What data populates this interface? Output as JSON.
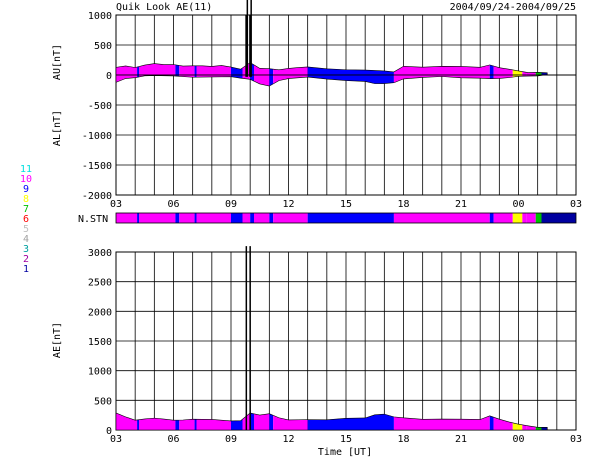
{
  "header": {
    "title": "Quik Look AE(11)",
    "date_range": "2004/09/24-2004/09/25"
  },
  "chart_data": [
    {
      "type": "area",
      "panel": "AU/AL",
      "y_upper_label": "AU[nT]",
      "y_lower_label": "AL[nT]",
      "ylim": [
        -2000,
        1000
      ],
      "yticks": [
        -2000,
        -1500,
        -1000,
        -500,
        0,
        500,
        1000
      ],
      "x_ticks": [
        "03",
        "06",
        "09",
        "12",
        "15",
        "18",
        "21",
        "00",
        "03"
      ],
      "x_range_hours": [
        3,
        27
      ],
      "grid": true,
      "au_profile": [
        [
          3.0,
          120
        ],
        [
          3.5,
          150
        ],
        [
          4.0,
          130
        ],
        [
          4.5,
          160
        ],
        [
          5.0,
          190
        ],
        [
          5.5,
          180
        ],
        [
          6.0,
          170
        ],
        [
          6.5,
          150
        ],
        [
          7.0,
          160
        ],
        [
          7.5,
          150
        ],
        [
          8.0,
          145
        ],
        [
          8.5,
          150
        ],
        [
          9.0,
          130
        ],
        [
          9.5,
          100
        ],
        [
          10.0,
          200
        ],
        [
          10.5,
          110
        ],
        [
          11.0,
          110
        ],
        [
          11.5,
          80
        ],
        [
          12.0,
          110
        ],
        [
          12.5,
          130
        ],
        [
          13.0,
          130
        ],
        [
          14.0,
          110
        ],
        [
          15.0,
          90
        ],
        [
          16.0,
          80
        ],
        [
          17.0,
          60
        ],
        [
          17.5,
          50
        ],
        [
          18.0,
          150
        ],
        [
          19.0,
          130
        ],
        [
          20.0,
          140
        ],
        [
          21.0,
          150
        ],
        [
          22.0,
          130
        ],
        [
          22.5,
          160
        ],
        [
          23.0,
          120
        ],
        [
          23.5,
          100
        ],
        [
          24.0,
          60
        ],
        [
          24.5,
          40
        ],
        [
          25.0,
          50
        ],
        [
          25.5,
          30
        ]
      ],
      "al_profile": [
        [
          3.0,
          -130
        ],
        [
          3.5,
          -60
        ],
        [
          4.0,
          -40
        ],
        [
          4.5,
          -20
        ],
        [
          5.0,
          -10
        ],
        [
          6.0,
          -20
        ],
        [
          7.0,
          -30
        ],
        [
          8.0,
          -30
        ],
        [
          9.0,
          -30
        ],
        [
          9.5,
          -50
        ],
        [
          10.0,
          -80
        ],
        [
          10.5,
          -150
        ],
        [
          11.0,
          -180
        ],
        [
          11.5,
          -100
        ],
        [
          12.0,
          -60
        ],
        [
          13.0,
          -40
        ],
        [
          14.0,
          -60
        ],
        [
          15.0,
          -90
        ],
        [
          16.0,
          -110
        ],
        [
          16.5,
          -140
        ],
        [
          17.0,
          -150
        ],
        [
          17.5,
          -130
        ],
        [
          18.0,
          -60
        ],
        [
          19.0,
          -40
        ],
        [
          20.0,
          -30
        ],
        [
          21.0,
          -40
        ],
        [
          22.0,
          -50
        ],
        [
          22.5,
          -70
        ],
        [
          23.0,
          -60
        ],
        [
          23.5,
          -40
        ],
        [
          24.0,
          -30
        ],
        [
          24.5,
          -20
        ],
        [
          25.0,
          -10
        ],
        [
          25.5,
          0
        ]
      ],
      "spikes": [
        [
          9.8,
          1000
        ],
        [
          10.0,
          1000
        ]
      ]
    },
    {
      "type": "heatmap",
      "panel": "N.STN",
      "label": "N.STN",
      "legend": [
        {
          "value": "11",
          "color": "#00e0e0"
        },
        {
          "value": "10",
          "color": "#ff00ff"
        },
        {
          "value": "9",
          "color": "#0000ff"
        },
        {
          "value": "8",
          "color": "#ffff00"
        },
        {
          "value": "7",
          "color": "#00c000"
        },
        {
          "value": "6",
          "color": "#ff0000"
        },
        {
          "value": "5",
          "color": "#c0c0c0"
        },
        {
          "value": "4",
          "color": "#a0a0a0"
        },
        {
          "value": "3",
          "color": "#00a0a0"
        },
        {
          "value": "2",
          "color": "#a000a0"
        },
        {
          "value": "1",
          "color": "#0000a0"
        }
      ],
      "segments": [
        [
          3.0,
          4.1,
          "10"
        ],
        [
          4.1,
          4.2,
          "9"
        ],
        [
          4.2,
          6.1,
          "10"
        ],
        [
          6.1,
          6.3,
          "9"
        ],
        [
          6.3,
          7.1,
          "10"
        ],
        [
          7.1,
          7.2,
          "9"
        ],
        [
          7.2,
          9.0,
          "10"
        ],
        [
          9.0,
          9.6,
          "9"
        ],
        [
          9.6,
          10.0,
          "10"
        ],
        [
          10.0,
          10.2,
          "9"
        ],
        [
          10.2,
          11.0,
          "10"
        ],
        [
          11.0,
          11.2,
          "9"
        ],
        [
          11.2,
          13.0,
          "10"
        ],
        [
          13.0,
          17.5,
          "9"
        ],
        [
          17.5,
          22.5,
          "10"
        ],
        [
          22.5,
          22.7,
          "9"
        ],
        [
          22.7,
          23.7,
          "10"
        ],
        [
          23.7,
          24.2,
          "8"
        ],
        [
          24.2,
          24.4,
          "10"
        ],
        [
          24.4,
          24.9,
          "10"
        ],
        [
          24.9,
          25.2,
          "7"
        ],
        [
          25.2,
          27.0,
          "1"
        ]
      ]
    },
    {
      "type": "area",
      "panel": "AE",
      "ylabel": "AE[nT]",
      "xlabel": "Time [UT]",
      "ylim": [
        0,
        3000
      ],
      "yticks": [
        0,
        500,
        1000,
        1500,
        2000,
        2500,
        3000
      ],
      "x_ticks": [
        "03",
        "06",
        "09",
        "12",
        "15",
        "18",
        "21",
        "00",
        "03"
      ],
      "x_range_hours": [
        3,
        27
      ],
      "grid": true,
      "ae_profile": [
        [
          3.0,
          280
        ],
        [
          3.5,
          220
        ],
        [
          4.0,
          170
        ],
        [
          4.5,
          180
        ],
        [
          5.0,
          200
        ],
        [
          5.5,
          190
        ],
        [
          6.0,
          160
        ],
        [
          6.5,
          170
        ],
        [
          7.0,
          190
        ],
        [
          8.0,
          180
        ],
        [
          9.0,
          150
        ],
        [
          9.5,
          160
        ],
        [
          10.0,
          280
        ],
        [
          10.5,
          250
        ],
        [
          11.0,
          280
        ],
        [
          11.5,
          200
        ],
        [
          12.0,
          170
        ],
        [
          13.0,
          170
        ],
        [
          14.0,
          180
        ],
        [
          15.0,
          200
        ],
        [
          16.0,
          200
        ],
        [
          16.5,
          260
        ],
        [
          17.0,
          260
        ],
        [
          17.5,
          220
        ],
        [
          18.0,
          210
        ],
        [
          19.0,
          180
        ],
        [
          20.0,
          180
        ],
        [
          21.0,
          190
        ],
        [
          22.0,
          180
        ],
        [
          22.5,
          230
        ],
        [
          23.0,
          180
        ],
        [
          23.5,
          140
        ],
        [
          24.0,
          90
        ],
        [
          24.5,
          70
        ],
        [
          25.0,
          50
        ],
        [
          25.5,
          40
        ]
      ],
      "spikes": [
        [
          9.8,
          3100
        ],
        [
          10.0,
          3100
        ]
      ]
    }
  ]
}
